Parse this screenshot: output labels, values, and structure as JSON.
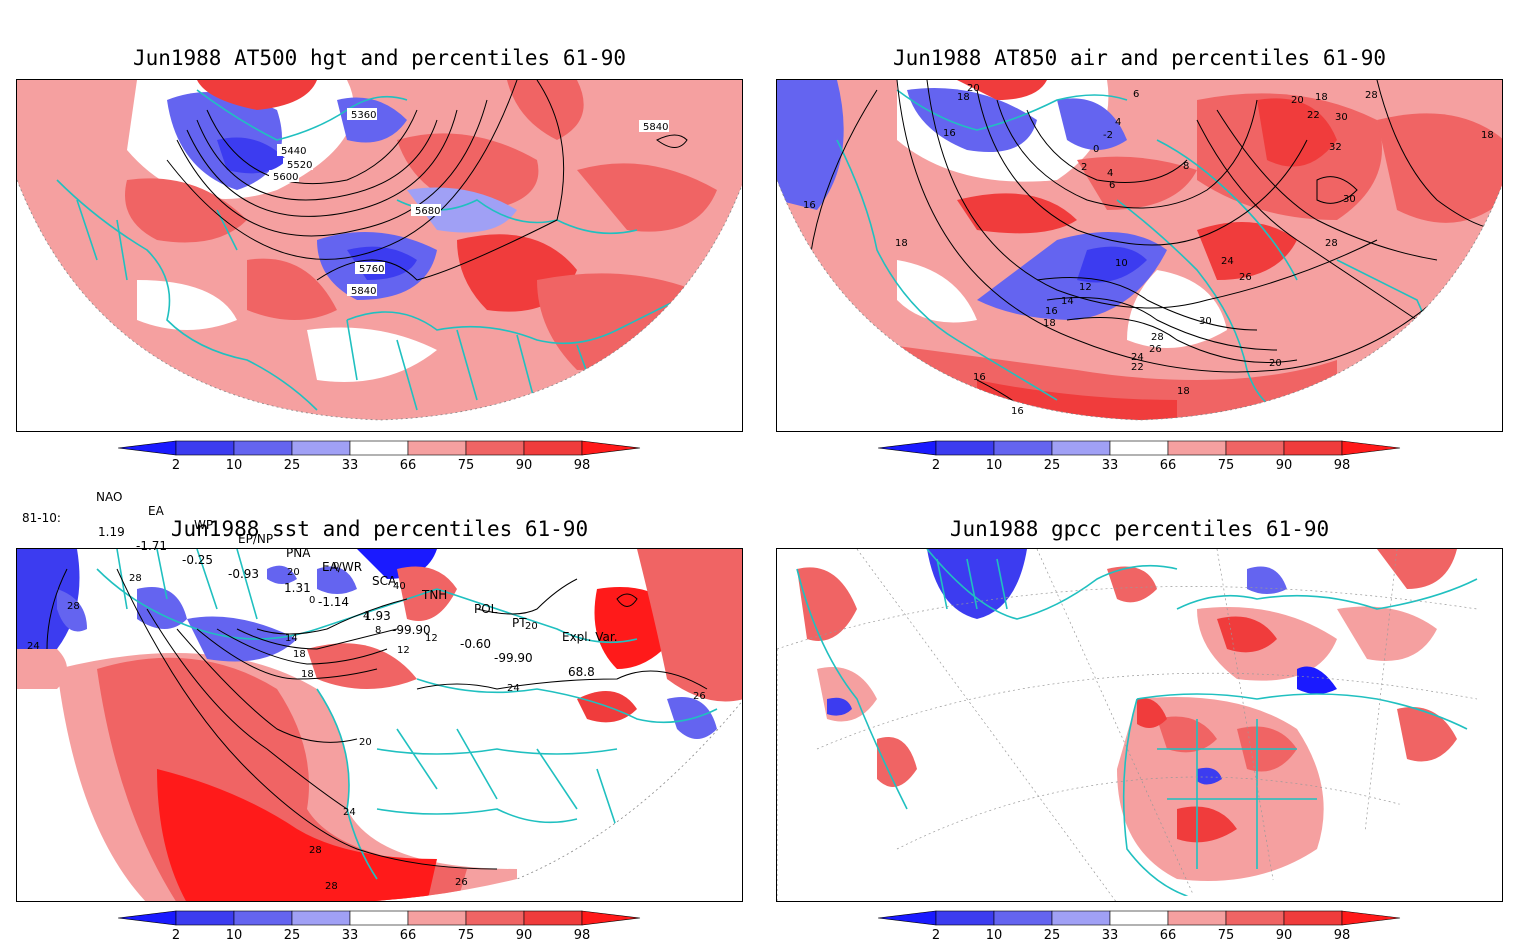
{
  "panels": {
    "hgt": {
      "title": "Jun1988 AT500 hgt and percentiles 61-90",
      "contour_labels": [
        "5360",
        "5440",
        "5520",
        "5600",
        "5680",
        "5760",
        "5840",
        "5840"
      ]
    },
    "air": {
      "title": "Jun1988 AT850 air and percentiles 61-90",
      "contour_labels": [
        "20",
        "18",
        "6",
        "4",
        "-2",
        "0",
        "16",
        "2",
        "4",
        "6",
        "8",
        "20",
        "18",
        "28",
        "22",
        "30",
        "32",
        "18",
        "16",
        "30",
        "18",
        "24",
        "26",
        "28",
        "10",
        "12",
        "14",
        "16",
        "18",
        "30",
        "28",
        "26",
        "24",
        "22",
        "20",
        "16",
        "16",
        "18"
      ]
    },
    "sst": {
      "title": "Jun1988 sst and percentiles 61-90",
      "contour_labels": [
        "28",
        "24",
        "28",
        "20",
        "0",
        "40",
        "0",
        "4",
        "8",
        "12",
        "12",
        "14",
        "18",
        "18",
        "20",
        "24",
        "28",
        "28",
        "26",
        "20",
        "24",
        "26"
      ]
    },
    "gpcc": {
      "title": "Jun1988 gpcc percentiles 61-90"
    }
  },
  "colorbar": {
    "ticks": [
      "2",
      "10",
      "25",
      "33",
      "66",
      "75",
      "90",
      "98"
    ],
    "colors": [
      "#1a1aff",
      "#3c3cf0",
      "#6464f0",
      "#a0a0f5",
      "#ffffff",
      "#f5a0a0",
      "#f06464",
      "#f03c3c",
      "#ff1a1a"
    ]
  },
  "indices": {
    "headers": [
      "NAO",
      "EA",
      "WP",
      "EP/NP",
      "PNA",
      "EA/WR",
      "SCA",
      "TNH",
      "POL",
      "PT",
      "Expl. Var."
    ],
    "row_label": "81-10:",
    "values": [
      "1.19",
      "-1.71",
      "-0.25",
      "-0.93",
      "1.31",
      "-1.14",
      "1.93",
      "-99.90",
      "-0.60",
      "-99.90",
      "68.8"
    ]
  },
  "map_colors": {
    "land_outline": "#20c0c0",
    "blue_strong": "#3c3cf0",
    "blue_light": "#a0a0f5",
    "red_light": "#f5a0a0",
    "red_mid": "#f06464",
    "red_strong": "#ff1a1a",
    "contour": "#000000"
  }
}
